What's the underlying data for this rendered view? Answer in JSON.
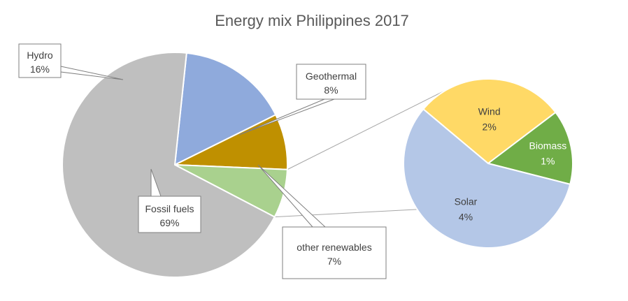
{
  "chart_data": {
    "type": "pie",
    "title": "Energy mix Philippines 2017",
    "main": {
      "slices": [
        {
          "name": "Fossil fuels",
          "value": 69,
          "label": "69%",
          "color": "#bfbfbf"
        },
        {
          "name": "Hydro",
          "value": 16,
          "label": "16%",
          "color": "#8faadc"
        },
        {
          "name": "Geothermal",
          "value": 8,
          "label": "8%",
          "color": "#bf9000"
        },
        {
          "name": "other renewables",
          "value": 7,
          "label": "7%",
          "color": "#a9d18e"
        }
      ]
    },
    "breakdown_of": "other renewables",
    "secondary": {
      "slices": [
        {
          "name": "Solar",
          "value": 4,
          "label": "4%",
          "color": "#b4c7e7"
        },
        {
          "name": "Wind",
          "value": 2,
          "label": "2%",
          "color": "#ffd966"
        },
        {
          "name": "Biomass",
          "value": 1,
          "label": "1%",
          "color": "#70ad47"
        }
      ]
    }
  }
}
